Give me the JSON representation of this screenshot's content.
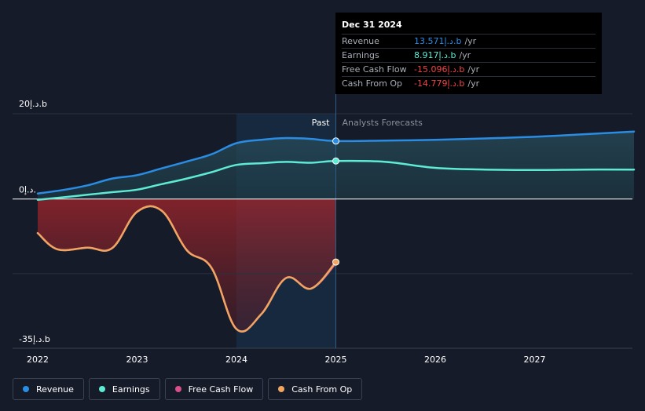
{
  "chart_data": {
    "type": "area",
    "ylabel_top": "20د.إ.b",
    "ylabel_zero": "0د.إ.",
    "ylabel_bottom": "-35د.إ.b",
    "ylim": [
      -35,
      20
    ],
    "x_ticks": [
      "2022",
      "2023",
      "2024",
      "2025",
      "2026",
      "2027"
    ],
    "past_label": "Past",
    "forecast_label": "Analysts Forecasts",
    "past_end": 2025.0,
    "series": [
      {
        "name": "Revenue",
        "color": "#2b8ce3",
        "x": [
          2022.0,
          2022.25,
          2022.5,
          2022.75,
          2023.0,
          2023.25,
          2023.5,
          2023.75,
          2024.0,
          2024.25,
          2024.5,
          2024.75,
          2025.0,
          2025.5,
          2026.0,
          2026.5,
          2027.0,
          2027.5,
          2028.0
        ],
        "values": [
          1.3,
          2.1,
          3.2,
          4.8,
          5.6,
          7.2,
          8.8,
          10.5,
          13.1,
          13.9,
          14.3,
          14.1,
          13.6,
          13.7,
          13.9,
          14.2,
          14.6,
          15.2,
          15.8
        ]
      },
      {
        "name": "Earnings",
        "color": "#5eead4",
        "x": [
          2022.0,
          2022.25,
          2022.5,
          2022.75,
          2023.0,
          2023.25,
          2023.5,
          2023.75,
          2024.0,
          2024.25,
          2024.5,
          2024.75,
          2025.0,
          2025.5,
          2026.0,
          2026.5,
          2027.0,
          2027.5,
          2028.0
        ],
        "values": [
          -0.2,
          0.4,
          1.0,
          1.6,
          2.2,
          3.5,
          4.8,
          6.3,
          8.0,
          8.4,
          8.7,
          8.5,
          8.917,
          8.7,
          7.3,
          6.9,
          6.8,
          6.9,
          6.9
        ]
      },
      {
        "name": "Free Cash Flow",
        "color": "#d94f8c",
        "x": [
          2022.0,
          2022.2,
          2022.5,
          2022.75,
          2023.0,
          2023.25,
          2023.5,
          2023.75,
          2024.0,
          2024.25,
          2024.5,
          2024.75,
          2025.0
        ],
        "values": [
          -8.0,
          -11.8,
          -11.4,
          -11.5,
          -3.0,
          -2.8,
          -12.0,
          -16.2,
          -30.5,
          -27.0,
          -18.5,
          -21.0,
          -15.096
        ]
      },
      {
        "name": "Cash From Op",
        "color": "#f0a560",
        "x": [
          2022.0,
          2022.2,
          2022.5,
          2022.75,
          2023.0,
          2023.25,
          2023.5,
          2023.75,
          2024.0,
          2024.25,
          2024.5,
          2024.75,
          2025.0
        ],
        "values": [
          -8.0,
          -11.8,
          -11.4,
          -11.5,
          -3.0,
          -2.8,
          -12.0,
          -16.2,
          -30.5,
          -27.0,
          -18.5,
          -21.0,
          -14.779
        ]
      }
    ]
  },
  "tooltip": {
    "date": "Dec 31 2024",
    "rows": [
      {
        "label": "Revenue",
        "value": "13.571د.إ.b",
        "unit": "/yr",
        "color": "#2b8ce3"
      },
      {
        "label": "Earnings",
        "value": "8.917د.إ.b",
        "unit": "/yr",
        "color": "#5eead4"
      },
      {
        "label": "Free Cash Flow",
        "value": "-15.096د.إ.b",
        "unit": "/yr",
        "color": "#ef4444"
      },
      {
        "label": "Cash From Op",
        "value": "-14.779د.إ.b",
        "unit": "/yr",
        "color": "#ef4444"
      }
    ]
  },
  "legend": [
    {
      "label": "Revenue",
      "color": "#2b8ce3"
    },
    {
      "label": "Earnings",
      "color": "#5eead4"
    },
    {
      "label": "Free Cash Flow",
      "color": "#d94f8c"
    },
    {
      "label": "Cash From Op",
      "color": "#f0a560"
    }
  ]
}
